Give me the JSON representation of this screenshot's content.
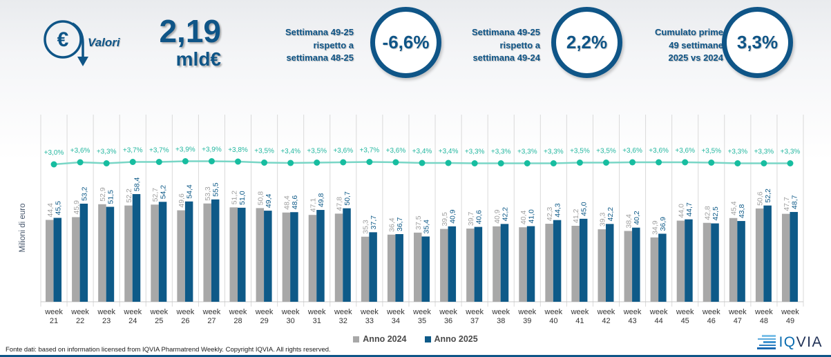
{
  "header": {
    "icon_label": "Valori",
    "euro_symbol": "€",
    "big_value": "2,19",
    "big_unit": "mld€",
    "kpis": [
      {
        "label_lines": [
          "Settimana 49-25",
          "rispetto a",
          "settimana 48-25"
        ],
        "value": "-6,6%"
      },
      {
        "label_lines": [
          "Settimana 49-25",
          "rispetto a",
          "settimana 49-24"
        ],
        "value": "2,2%"
      },
      {
        "label_lines": [
          "Cumulato prime",
          "49 settimane",
          "2025 vs 2024"
        ],
        "value": "3,3%"
      }
    ]
  },
  "chart_data": {
    "type": "bar",
    "ylabel": "Milioni di euro",
    "ylim": [
      0,
      100
    ],
    "grid": "vertical",
    "x_prefix": "week",
    "categories": [
      "21",
      "22",
      "23",
      "24",
      "25",
      "26",
      "27",
      "28",
      "29",
      "30",
      "31",
      "32",
      "33",
      "34",
      "35",
      "36",
      "37",
      "38",
      "39",
      "40",
      "41",
      "42",
      "43",
      "44",
      "45",
      "46",
      "47",
      "48",
      "49"
    ],
    "series": [
      {
        "name": "Anno 2024",
        "color": "#a8a8a8",
        "values": [
          "44,4",
          "45,9",
          "52,9",
          "52,2",
          "52,7",
          "49,6",
          "53,3",
          "51,2",
          "50,8",
          "48,4",
          "47,1",
          "47,8",
          "35,3",
          "36,4",
          "37,5",
          "39,5",
          "39,7",
          "40,9",
          "40,4",
          "42,3",
          "41,2",
          "39,3",
          "38,4",
          "34,9",
          "44,0",
          "42,8",
          "45,4",
          "50,6",
          "47,7"
        ]
      },
      {
        "name": "Anno 2025",
        "color": "#0e5a88",
        "values": [
          "45,5",
          "53,2",
          "51,5",
          "58,4",
          "54,2",
          "54,4",
          "55,5",
          "51,0",
          "49,4",
          "48,6",
          "49,8",
          "50,7",
          "37,7",
          "36,7",
          "35,4",
          "40,9",
          "40,6",
          "42,2",
          "41,0",
          "44,3",
          "45,0",
          "42,2",
          "40,2",
          "36,9",
          "44,7",
          "42,5",
          "43,8",
          "52,2",
          "48,7"
        ]
      }
    ],
    "line_overlay": {
      "type": "line",
      "color_line": "#79d6c6",
      "color_marker": "#17bda0",
      "color_label": "#24b7a0",
      "values": [
        "+3,0%",
        "+3,6%",
        "+3,3%",
        "+3,7%",
        "+3,7%",
        "+3,9%",
        "+3,9%",
        "+3,8%",
        "+3,5%",
        "+3,4%",
        "+3,5%",
        "+3,6%",
        "+3,7%",
        "+3,6%",
        "+3,4%",
        "+3,4%",
        "+3,3%",
        "+3,3%",
        "+3,3%",
        "+3,3%",
        "+3,5%",
        "+3,5%",
        "+3,6%",
        "+3,6%",
        "+3,6%",
        "+3,5%",
        "+3,3%",
        "+3,3%",
        "+3,3%"
      ]
    }
  },
  "legend": [
    {
      "label": "Anno 2024",
      "color": "#a8a8a8"
    },
    {
      "label": "Anno 2025",
      "color": "#0e5a88"
    }
  ],
  "footer": {
    "source": "Fonte dati: based on information licensed from IQVIA Pharmatrend Weekly. Copyright IQVIA. All rights reserved.",
    "logo_iq": "IQ",
    "logo_via": "VIA"
  }
}
